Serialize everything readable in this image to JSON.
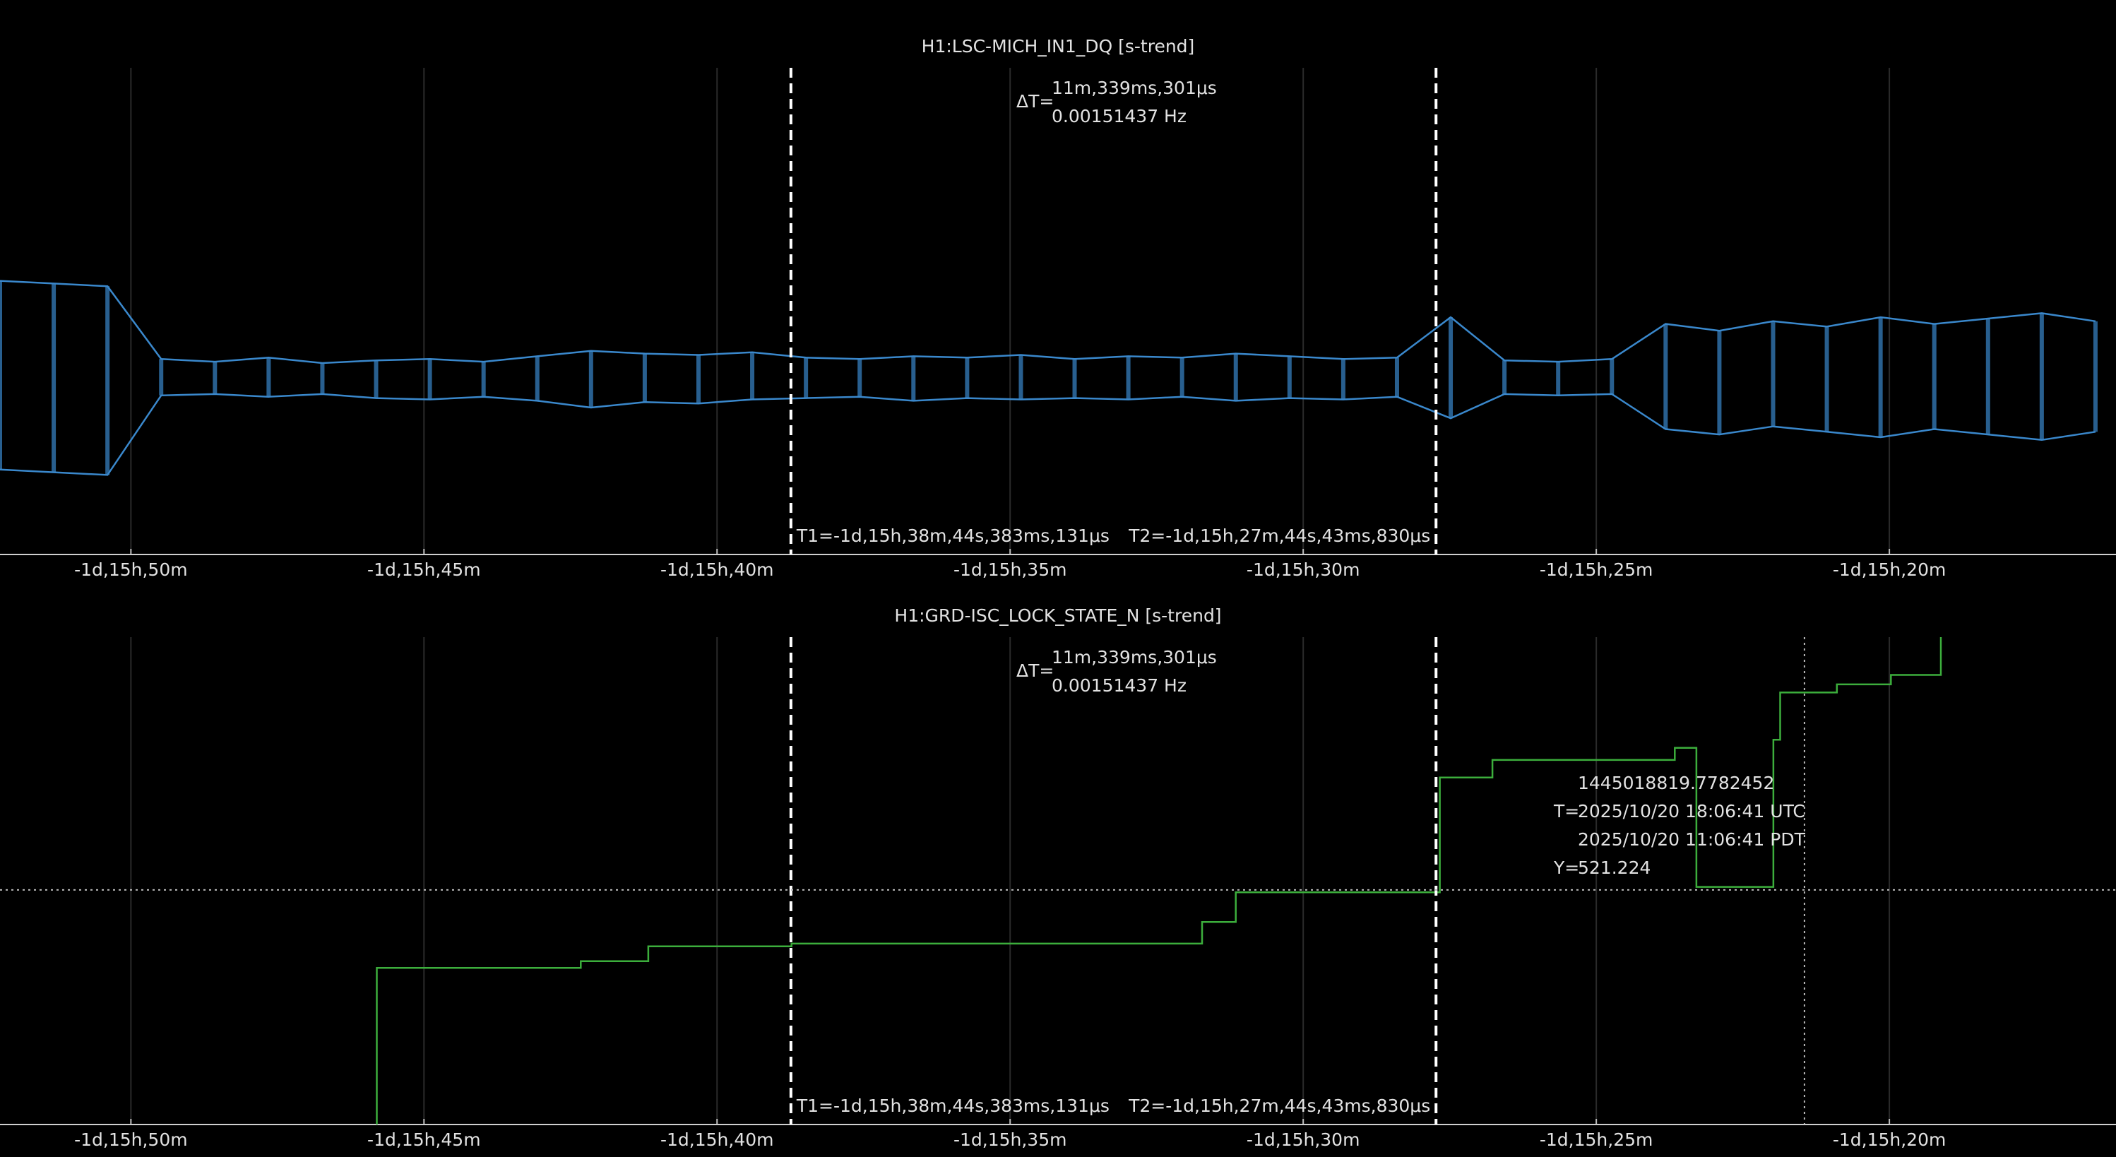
{
  "chart_data": [
    {
      "type": "line",
      "title": "H1:LSC-MICH_IN1_DQ [s-trend]",
      "x": [
        -143534,
        -143479,
        -143424,
        -143369,
        -143314,
        -143259,
        -143204,
        -143149,
        -143094,
        -143039,
        -142984,
        -142929,
        -142874,
        -142819,
        -142764,
        -142709,
        -142654,
        -142599,
        -142544,
        -142489,
        -142434,
        -142379,
        -142324,
        -142269,
        -142214,
        -142159,
        -142104,
        -142049,
        -141994,
        -141939,
        -141884,
        -141829,
        -141774,
        -141719,
        -141664,
        -141609,
        -141554,
        -141499,
        -141444,
        -141389
      ],
      "series": [
        {
          "name": "max",
          "color": "#3a88cc",
          "values": [
            0.72,
            0.7,
            0.68,
            0.14,
            0.12,
            0.15,
            0.11,
            0.13,
            0.14,
            0.12,
            0.16,
            0.2,
            0.18,
            0.17,
            0.19,
            0.15,
            0.14,
            0.16,
            0.15,
            0.17,
            0.14,
            0.16,
            0.15,
            0.18,
            0.16,
            0.14,
            0.15,
            0.45,
            0.13,
            0.12,
            0.14,
            0.4,
            0.35,
            0.42,
            0.38,
            0.45,
            0.4,
            0.44,
            0.48,
            0.42
          ]
        },
        {
          "name": "min",
          "color": "#3a88cc",
          "values": [
            -0.68,
            -0.7,
            -0.72,
            -0.13,
            -0.12,
            -0.14,
            -0.12,
            -0.15,
            -0.16,
            -0.14,
            -0.17,
            -0.22,
            -0.18,
            -0.19,
            -0.16,
            -0.15,
            -0.14,
            -0.17,
            -0.15,
            -0.16,
            -0.15,
            -0.16,
            -0.14,
            -0.17,
            -0.15,
            -0.16,
            -0.14,
            -0.3,
            -0.12,
            -0.13,
            -0.12,
            -0.38,
            -0.42,
            -0.36,
            -0.4,
            -0.44,
            -0.38,
            -0.42,
            -0.46,
            -0.4
          ]
        }
      ],
      "xlim": [
        -143534,
        -141368
      ],
      "ylim": [
        -1.31,
        2.3
      ],
      "xticks": [
        {
          "value": -143400,
          "label": "-1d,15h,50m"
        },
        {
          "value": -143100,
          "label": "-1d,15h,45m"
        },
        {
          "value": -142800,
          "label": "-1d,15h,40m"
        },
        {
          "value": -142500,
          "label": "-1d,15h,35m"
        },
        {
          "value": -142200,
          "label": "-1d,15h,30m"
        },
        {
          "value": -141900,
          "label": "-1d,15h,25m"
        },
        {
          "value": -141600,
          "label": "-1d,15h,20m"
        }
      ],
      "grid": true,
      "cursors": {
        "t1": -142724.383131,
        "t1_label": "T1=-1d,15h,38m,44s,383ms,131μs",
        "t2": -142064.04383,
        "t2_label": "T2=-1d,15h,27m,44s,43ms,830μs",
        "delta_prefix": "ΔT=",
        "delta": "11m,339ms,301μs",
        "frequency": "0.00151437 Hz"
      }
    },
    {
      "type": "line",
      "title": "H1:GRD-ISC_LOCK_STATE_N [s-trend]",
      "x": [
        -143148.3,
        -143148.3,
        -142939.5,
        -142939.5,
        -142870.4,
        -142870.4,
        -142723.8,
        -142723.8,
        -142303.5,
        -142303.5,
        -142269.0,
        -142269.0,
        -142060.2,
        -142060.2,
        -142006.3,
        -142006.3,
        -141819.6,
        -141819.6,
        -141797.5,
        -141797.5,
        -141718.7,
        -141718.7,
        -141711.8,
        -141711.8,
        -141653.7,
        -141653.7,
        -141598.4,
        -141598.4,
        -141547.3,
        -141547.3
      ],
      "series": [
        {
          "name": "mean",
          "color": "#3cae3c",
          "values": [
            0,
            348,
            348,
            363,
            363,
            396,
            396,
            402,
            402,
            450,
            450,
            516,
            516,
            771,
            771,
            810,
            810,
            837,
            837,
            528,
            528,
            855,
            855,
            960,
            960,
            978,
            978,
            999,
            999,
            1083
          ]
        }
      ],
      "xlim": [
        -143534,
        -141368
      ],
      "ylim": [
        0,
        1083
      ],
      "xticks": [
        {
          "value": -143400,
          "label": "-1d,15h,50m"
        },
        {
          "value": -143100,
          "label": "-1d,15h,45m"
        },
        {
          "value": -142800,
          "label": "-1d,15h,40m"
        },
        {
          "value": -142500,
          "label": "-1d,15h,35m"
        },
        {
          "value": -142200,
          "label": "-1d,15h,30m"
        },
        {
          "value": -141900,
          "label": "-1d,15h,25m"
        },
        {
          "value": -141600,
          "label": "-1d,15h,20m"
        }
      ],
      "grid": true,
      "cursors": {
        "t1": -142724.383131,
        "t1_label": "T1=-1d,15h,38m,44s,383ms,131μs",
        "t2": -142064.04383,
        "t2_label": "T2=-1d,15h,27m,44s,43ms,830μs",
        "delta_prefix": "ΔT=",
        "delta": "11m,339ms,301μs",
        "frequency": "0.00151437 Hz"
      },
      "crosshair": {
        "x": -141686.9,
        "gps": "1445018819.7782452",
        "t_prefix": "T=",
        "utc": "2025/10/20 18:06:41 UTC",
        "pdt": "2025/10/20 11:06:41 PDT",
        "y_prefix": "Y=",
        "y": 521.224
      }
    }
  ]
}
